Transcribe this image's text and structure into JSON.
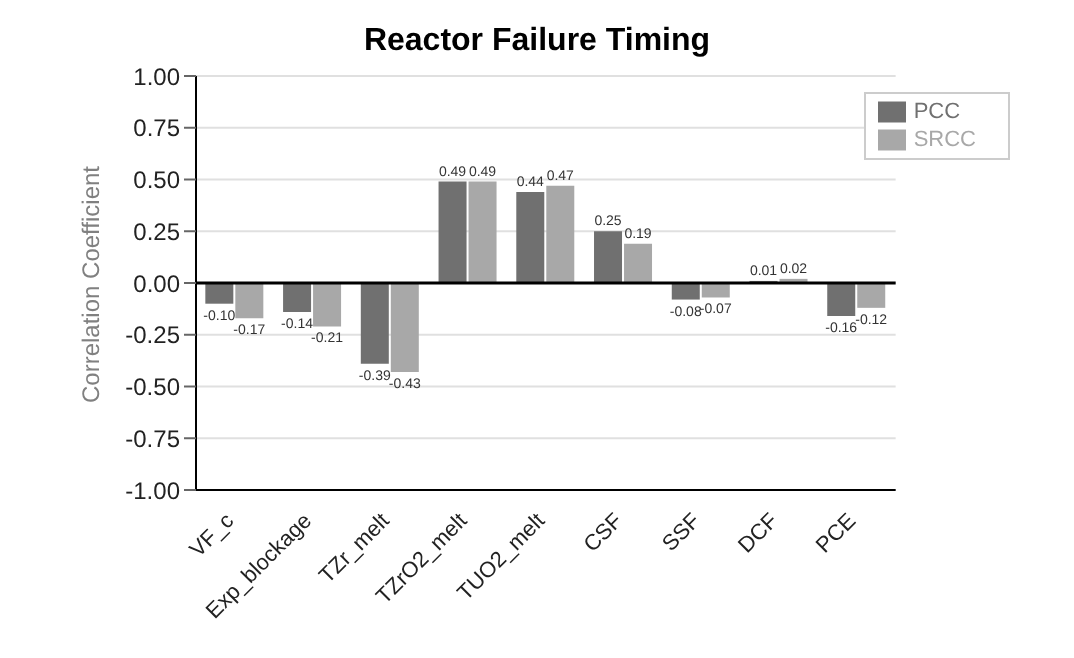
{
  "chart_data": {
    "type": "bar",
    "title": "Reactor Failure Timing",
    "ylabel": "Correlation Coefficient",
    "categories": [
      "VF_c",
      "Exp_blockage",
      "TZr_melt",
      "TZrO2_melt",
      "TUO2_melt",
      "CSF",
      "SSF",
      "DCF",
      "PCE"
    ],
    "series": [
      {
        "name": "PCC",
        "color": "#707070",
        "values": [
          -0.1,
          -0.14,
          -0.39,
          0.49,
          0.44,
          0.25,
          -0.08,
          0.01,
          -0.16
        ],
        "value_labels": [
          "-0.10",
          "-0.14",
          "-0.39",
          "0.49",
          "0.44",
          "0.25",
          "-0.08",
          "0.01",
          "-0.16"
        ]
      },
      {
        "name": "SRCC",
        "color": "#a8a8a8",
        "values": [
          -0.17,
          -0.21,
          -0.43,
          0.49,
          0.47,
          0.19,
          -0.07,
          0.02,
          -0.12
        ],
        "value_labels": [
          "-0.17",
          "-0.21",
          "-0.43",
          "0.49",
          "0.47",
          "0.19",
          "-0.07",
          "0.02",
          "-0.12"
        ]
      }
    ],
    "ylim": [
      -1,
      1
    ],
    "yticks": [
      {
        "value": -1,
        "label": "-1.00"
      },
      {
        "value": -0.75,
        "label": "-0.75"
      },
      {
        "value": -0.5,
        "label": "-0.50"
      },
      {
        "value": -0.25,
        "label": "-0.25"
      },
      {
        "value": 0,
        "label": "0.00"
      },
      {
        "value": 0.25,
        "label": "0.25"
      },
      {
        "value": 0.5,
        "label": "0.50"
      },
      {
        "value": 0.75,
        "label": "0.75"
      },
      {
        "value": 1,
        "label": "1.00"
      }
    ],
    "grid": "y",
    "legend": "top right",
    "ref_lines": [
      {
        "axis": "y",
        "value": 0,
        "color": "#000000"
      }
    ]
  }
}
